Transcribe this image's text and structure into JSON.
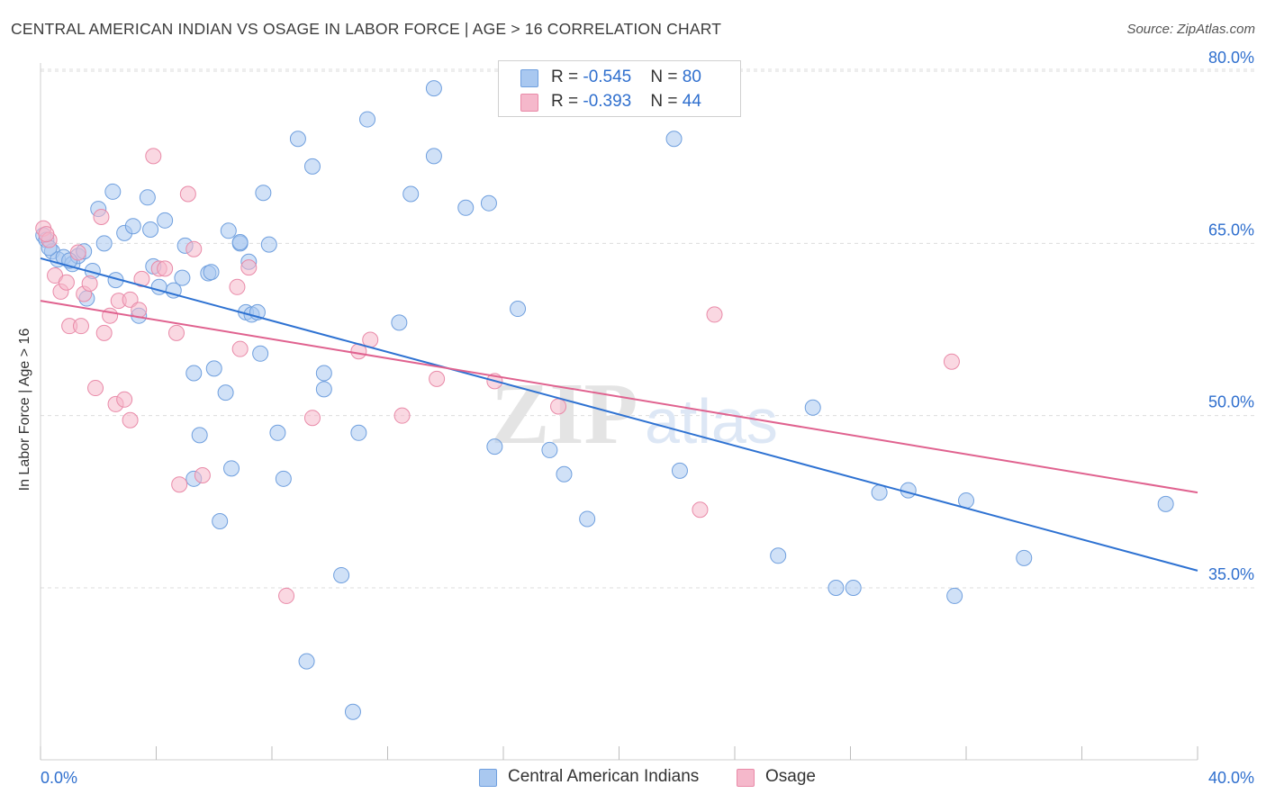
{
  "header": {
    "title": "CENTRAL AMERICAN INDIAN VS OSAGE IN LABOR FORCE | AGE > 16 CORRELATION CHART",
    "source": "Source: ZipAtlas.com"
  },
  "watermark": {
    "zip": "ZIP",
    "atlas": "atlas"
  },
  "colors": {
    "blue_fill": "#a9c8f0",
    "blue_stroke": "#6f9fde",
    "blue_line": "#2e72d2",
    "pink_fill": "#f5b8cb",
    "pink_stroke": "#e98aa8",
    "pink_line": "#e0628f",
    "axis_label": "#2f6fce",
    "grid": "#dcdcdc"
  },
  "legend": {
    "rows": [
      {
        "r_label": "R = ",
        "r_value": "-0.545",
        "n_label": "N = ",
        "n_value": "80"
      },
      {
        "r_label": "R = ",
        "r_value": "-0.393",
        "n_label": "N = ",
        "n_value": "44"
      }
    ],
    "series": [
      "Central American Indians",
      "Osage"
    ]
  },
  "chart_data": {
    "type": "scatter",
    "title": "CENTRAL AMERICAN INDIAN VS OSAGE IN LABOR FORCE | AGE > 16 CORRELATION CHART",
    "xlabel": "",
    "ylabel": "In Labor Force | Age > 16",
    "xlim": [
      0,
      40
    ],
    "ylim": [
      20,
      83
    ],
    "x_tick_labels": [
      "0.0%",
      "40.0%"
    ],
    "y_ticks": [
      35,
      50,
      65,
      80
    ],
    "y_tick_labels": [
      "35.0%",
      "50.0%",
      "65.0%",
      "80.0%"
    ],
    "grid": true,
    "legend_position": "top-center",
    "series": [
      {
        "name": "Central American Indians",
        "color": "#a9c8f0",
        "trend": {
          "x": [
            0,
            40
          ],
          "y": [
            63.7,
            36.5
          ]
        },
        "points": [
          [
            0.1,
            65.7
          ],
          [
            0.2,
            65.3
          ],
          [
            0.4,
            64.3
          ],
          [
            0.6,
            63.6
          ],
          [
            0.8,
            63.8
          ],
          [
            1.1,
            63.2
          ],
          [
            1.3,
            63.9
          ],
          [
            1.5,
            64.3
          ],
          [
            1.6,
            60.2
          ],
          [
            1.8,
            62.6
          ],
          [
            2.0,
            68.0
          ],
          [
            2.2,
            65.0
          ],
          [
            2.6,
            61.8
          ],
          [
            2.9,
            65.9
          ],
          [
            3.2,
            66.5
          ],
          [
            3.4,
            58.7
          ],
          [
            3.7,
            69.0
          ],
          [
            3.8,
            66.2
          ],
          [
            3.9,
            63.0
          ],
          [
            4.1,
            61.2
          ],
          [
            4.3,
            67.0
          ],
          [
            4.6,
            60.9
          ],
          [
            5.0,
            64.8
          ],
          [
            5.3,
            53.7
          ],
          [
            5.3,
            44.5
          ],
          [
            5.5,
            48.3
          ],
          [
            5.8,
            62.4
          ],
          [
            5.9,
            62.5
          ],
          [
            6.0,
            54.1
          ],
          [
            6.2,
            40.8
          ],
          [
            6.4,
            52.0
          ],
          [
            6.5,
            66.1
          ],
          [
            6.6,
            45.4
          ],
          [
            6.9,
            65.0
          ],
          [
            7.1,
            59.0
          ],
          [
            7.2,
            63.4
          ],
          [
            7.3,
            58.8
          ],
          [
            7.5,
            59.0
          ],
          [
            7.6,
            55.4
          ],
          [
            7.7,
            69.4
          ],
          [
            7.9,
            64.9
          ],
          [
            8.2,
            48.5
          ],
          [
            8.4,
            44.5
          ],
          [
            8.9,
            74.1
          ],
          [
            9.2,
            28.6
          ],
          [
            9.4,
            71.7
          ],
          [
            9.8,
            53.7
          ],
          [
            9.8,
            52.3
          ],
          [
            10.4,
            36.1
          ],
          [
            10.8,
            24.2
          ],
          [
            11.0,
            48.5
          ],
          [
            11.3,
            75.8
          ],
          [
            12.4,
            58.1
          ],
          [
            12.8,
            69.3
          ],
          [
            13.6,
            78.5
          ],
          [
            13.6,
            72.6
          ],
          [
            14.7,
            68.1
          ],
          [
            15.5,
            68.5
          ],
          [
            15.7,
            47.3
          ],
          [
            16.5,
            59.3
          ],
          [
            17.6,
            47.0
          ],
          [
            18.1,
            44.9
          ],
          [
            18.9,
            41.0
          ],
          [
            21.9,
            74.1
          ],
          [
            22.1,
            45.2
          ],
          [
            25.5,
            37.8
          ],
          [
            26.7,
            50.7
          ],
          [
            27.5,
            35.0
          ],
          [
            28.1,
            35.0
          ],
          [
            29.0,
            43.3
          ],
          [
            30.0,
            43.5
          ],
          [
            31.6,
            34.3
          ],
          [
            32.0,
            42.6
          ],
          [
            34.0,
            37.6
          ],
          [
            38.9,
            42.3
          ],
          [
            0.3,
            64.6
          ],
          [
            1.0,
            63.5
          ],
          [
            2.5,
            69.5
          ],
          [
            6.9,
            65.1
          ],
          [
            4.9,
            62.0
          ]
        ]
      },
      {
        "name": "Osage",
        "color": "#f5b8cb",
        "trend": {
          "x": [
            0,
            40
          ],
          "y": [
            60.0,
            43.3
          ]
        },
        "points": [
          [
            0.1,
            66.3
          ],
          [
            0.3,
            65.3
          ],
          [
            0.5,
            62.2
          ],
          [
            0.7,
            60.8
          ],
          [
            0.9,
            61.6
          ],
          [
            1.0,
            57.8
          ],
          [
            1.3,
            64.2
          ],
          [
            1.4,
            57.8
          ],
          [
            1.5,
            60.6
          ],
          [
            1.7,
            61.5
          ],
          [
            1.9,
            52.4
          ],
          [
            2.1,
            67.3
          ],
          [
            2.2,
            57.2
          ],
          [
            2.4,
            58.7
          ],
          [
            2.6,
            51.0
          ],
          [
            2.7,
            60.0
          ],
          [
            2.9,
            51.4
          ],
          [
            3.1,
            60.1
          ],
          [
            3.1,
            49.6
          ],
          [
            3.4,
            59.2
          ],
          [
            3.5,
            61.9
          ],
          [
            3.9,
            72.6
          ],
          [
            4.1,
            62.8
          ],
          [
            4.3,
            62.8
          ],
          [
            4.7,
            57.2
          ],
          [
            4.8,
            44.0
          ],
          [
            5.1,
            69.3
          ],
          [
            5.3,
            64.5
          ],
          [
            5.6,
            44.8
          ],
          [
            6.8,
            61.2
          ],
          [
            6.9,
            55.8
          ],
          [
            7.2,
            62.9
          ],
          [
            8.5,
            34.3
          ],
          [
            9.4,
            49.8
          ],
          [
            11.0,
            55.6
          ],
          [
            11.4,
            56.6
          ],
          [
            12.5,
            50.0
          ],
          [
            13.7,
            53.2
          ],
          [
            15.7,
            53.0
          ],
          [
            17.9,
            50.8
          ],
          [
            22.8,
            41.8
          ],
          [
            23.3,
            58.8
          ],
          [
            31.5,
            54.7
          ],
          [
            0.2,
            65.8
          ]
        ]
      }
    ]
  }
}
